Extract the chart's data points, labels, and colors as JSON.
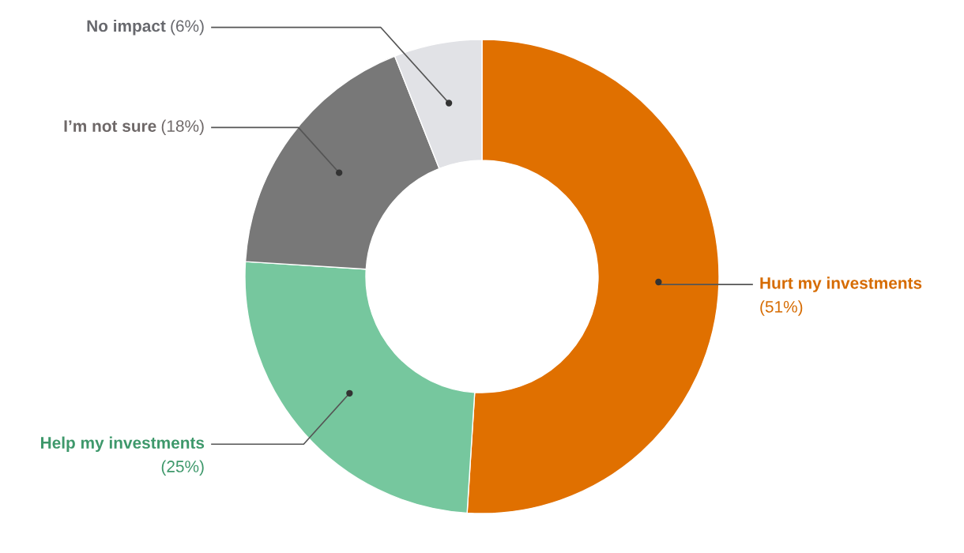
{
  "chart_data": {
    "type": "donut",
    "categories": [
      "Hurt my investments",
      "Help my investments",
      "I’m not sure",
      "No impact"
    ],
    "values": [
      51,
      25,
      18,
      6
    ],
    "colors": [
      "#e07000",
      "#76c79e",
      "#787878",
      "#e1e2e6"
    ],
    "value_labels": [
      "(51%)",
      "(25%)",
      "(18%)",
      "(6%)"
    ],
    "legend": false
  }
}
